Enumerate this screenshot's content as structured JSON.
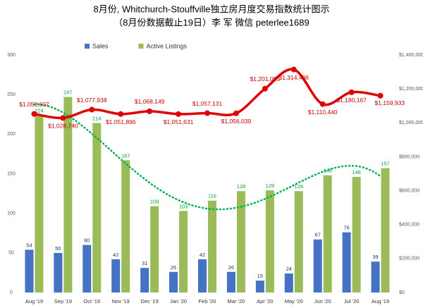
{
  "chart_data": {
    "type": "bar-line",
    "title": "8月份, Whitchurch-Stouffville独立房月度交易指数统计图示",
    "subtitle": "（8月份数据截止19日）李 军  微信  peterlee1689",
    "categories": [
      "Aug '19",
      "Sep '19",
      "Oct '19",
      "Nov '19",
      "Dec '19",
      "Jan '20",
      "Feb '20",
      "Mar '20",
      "Apr '20",
      "May '20",
      "Jun '20",
      "Jul '20",
      "Aug '19"
    ],
    "series": [
      {
        "name": "Sales",
        "color": "#4472c4",
        "values": [
          54,
          50,
          60,
          42,
          31,
          26,
          42,
          26,
          15,
          24,
          67,
          76,
          39
        ]
      },
      {
        "name": "Active Listings",
        "color": "#9bbb59",
        "values": [
          224,
          247,
          214,
          167,
          109,
          103,
          116,
          128,
          129,
          128,
          148,
          146,
          157
        ]
      },
      {
        "color": "#e00000",
        "axis": "y2",
        "values": [
          1052607,
          1028740,
          1077938,
          1051896,
          1068149,
          1051631,
          1057131,
          1056039,
          1201055,
          1314406,
          1110440,
          1180167,
          1159933
        ],
        "value_labels": [
          "$1,052,607",
          "$1,028,740",
          "$1,077,938",
          "$1,051,896",
          "$1,068,149",
          "$1,051,631",
          "$1,057,131",
          "$1,056,039",
          "$1,201,055",
          "$1,314,406",
          "$1,110,440",
          "$1,180,167",
          "$1,159,933"
        ]
      }
    ],
    "ylim": [
      0,
      300
    ],
    "yticks": [
      0,
      50,
      100,
      150,
      200,
      250,
      300
    ],
    "y2lim": [
      0,
      1400000
    ],
    "y2ticks": [
      {
        "value": 0,
        "label": "$0"
      },
      {
        "value": 200000,
        "label": "$200,000"
      },
      {
        "value": 400000,
        "label": "$400,000"
      },
      {
        "value": 600000,
        "label": "$600,000"
      },
      {
        "value": 800000,
        "label": "$800,000"
      },
      {
        "value": 1000000,
        "label": "$1,000,000"
      },
      {
        "value": 1200000,
        "label": "$1,200,000"
      },
      {
        "value": 1400000,
        "label": "$1,400,000"
      }
    ],
    "trendline_color": "#00b050"
  }
}
